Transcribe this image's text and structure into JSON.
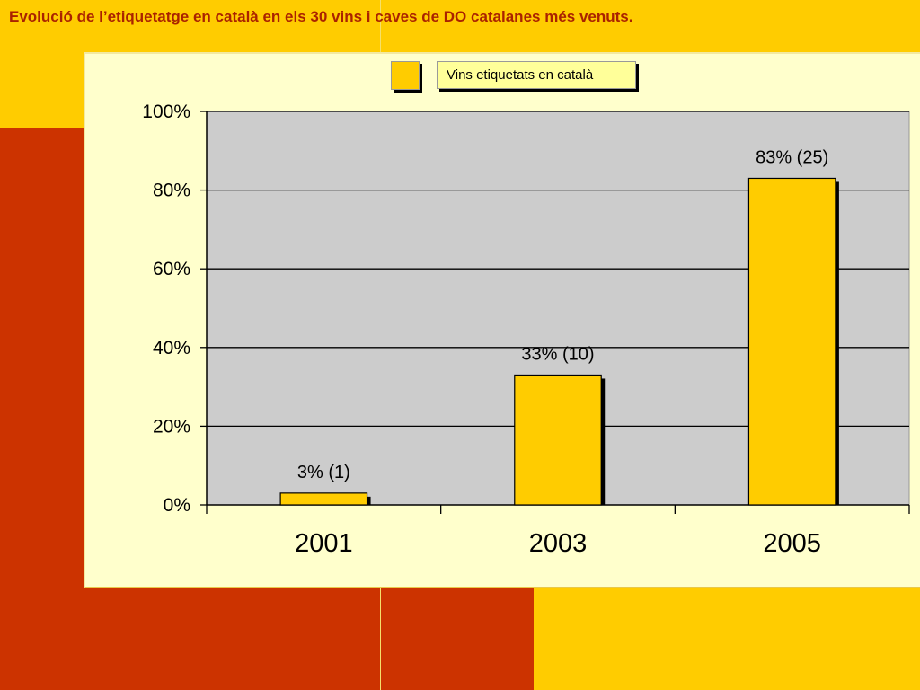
{
  "slide": {
    "title": "Evolució de l’etiquetatge en català en els 30 vins i caves de DO catalanes més venuts."
  },
  "colors": {
    "background": "#ffcc00",
    "accent_red": "#cc3300",
    "panel": "#ffffcc",
    "plot_area": "#cccccc",
    "bar": "#ffcc00",
    "title_text": "#aa2200"
  },
  "chart_data": {
    "type": "bar",
    "title": "",
    "xlabel": "",
    "ylabel": "",
    "categories": [
      "2001",
      "2003",
      "2005"
    ],
    "series": [
      {
        "name": "Vins etiquetats en català",
        "values": [
          3,
          33,
          83
        ],
        "data_labels": [
          "3% (1)",
          "33% (10)",
          "83% (25)"
        ]
      }
    ],
    "ylim": [
      0,
      100
    ],
    "y_ticks": [
      0,
      20,
      40,
      60,
      80,
      100
    ],
    "y_tick_labels": [
      "0%",
      "20%",
      "40%",
      "60%",
      "80%",
      "100%"
    ],
    "grid": true,
    "legend_position": "top-center"
  }
}
